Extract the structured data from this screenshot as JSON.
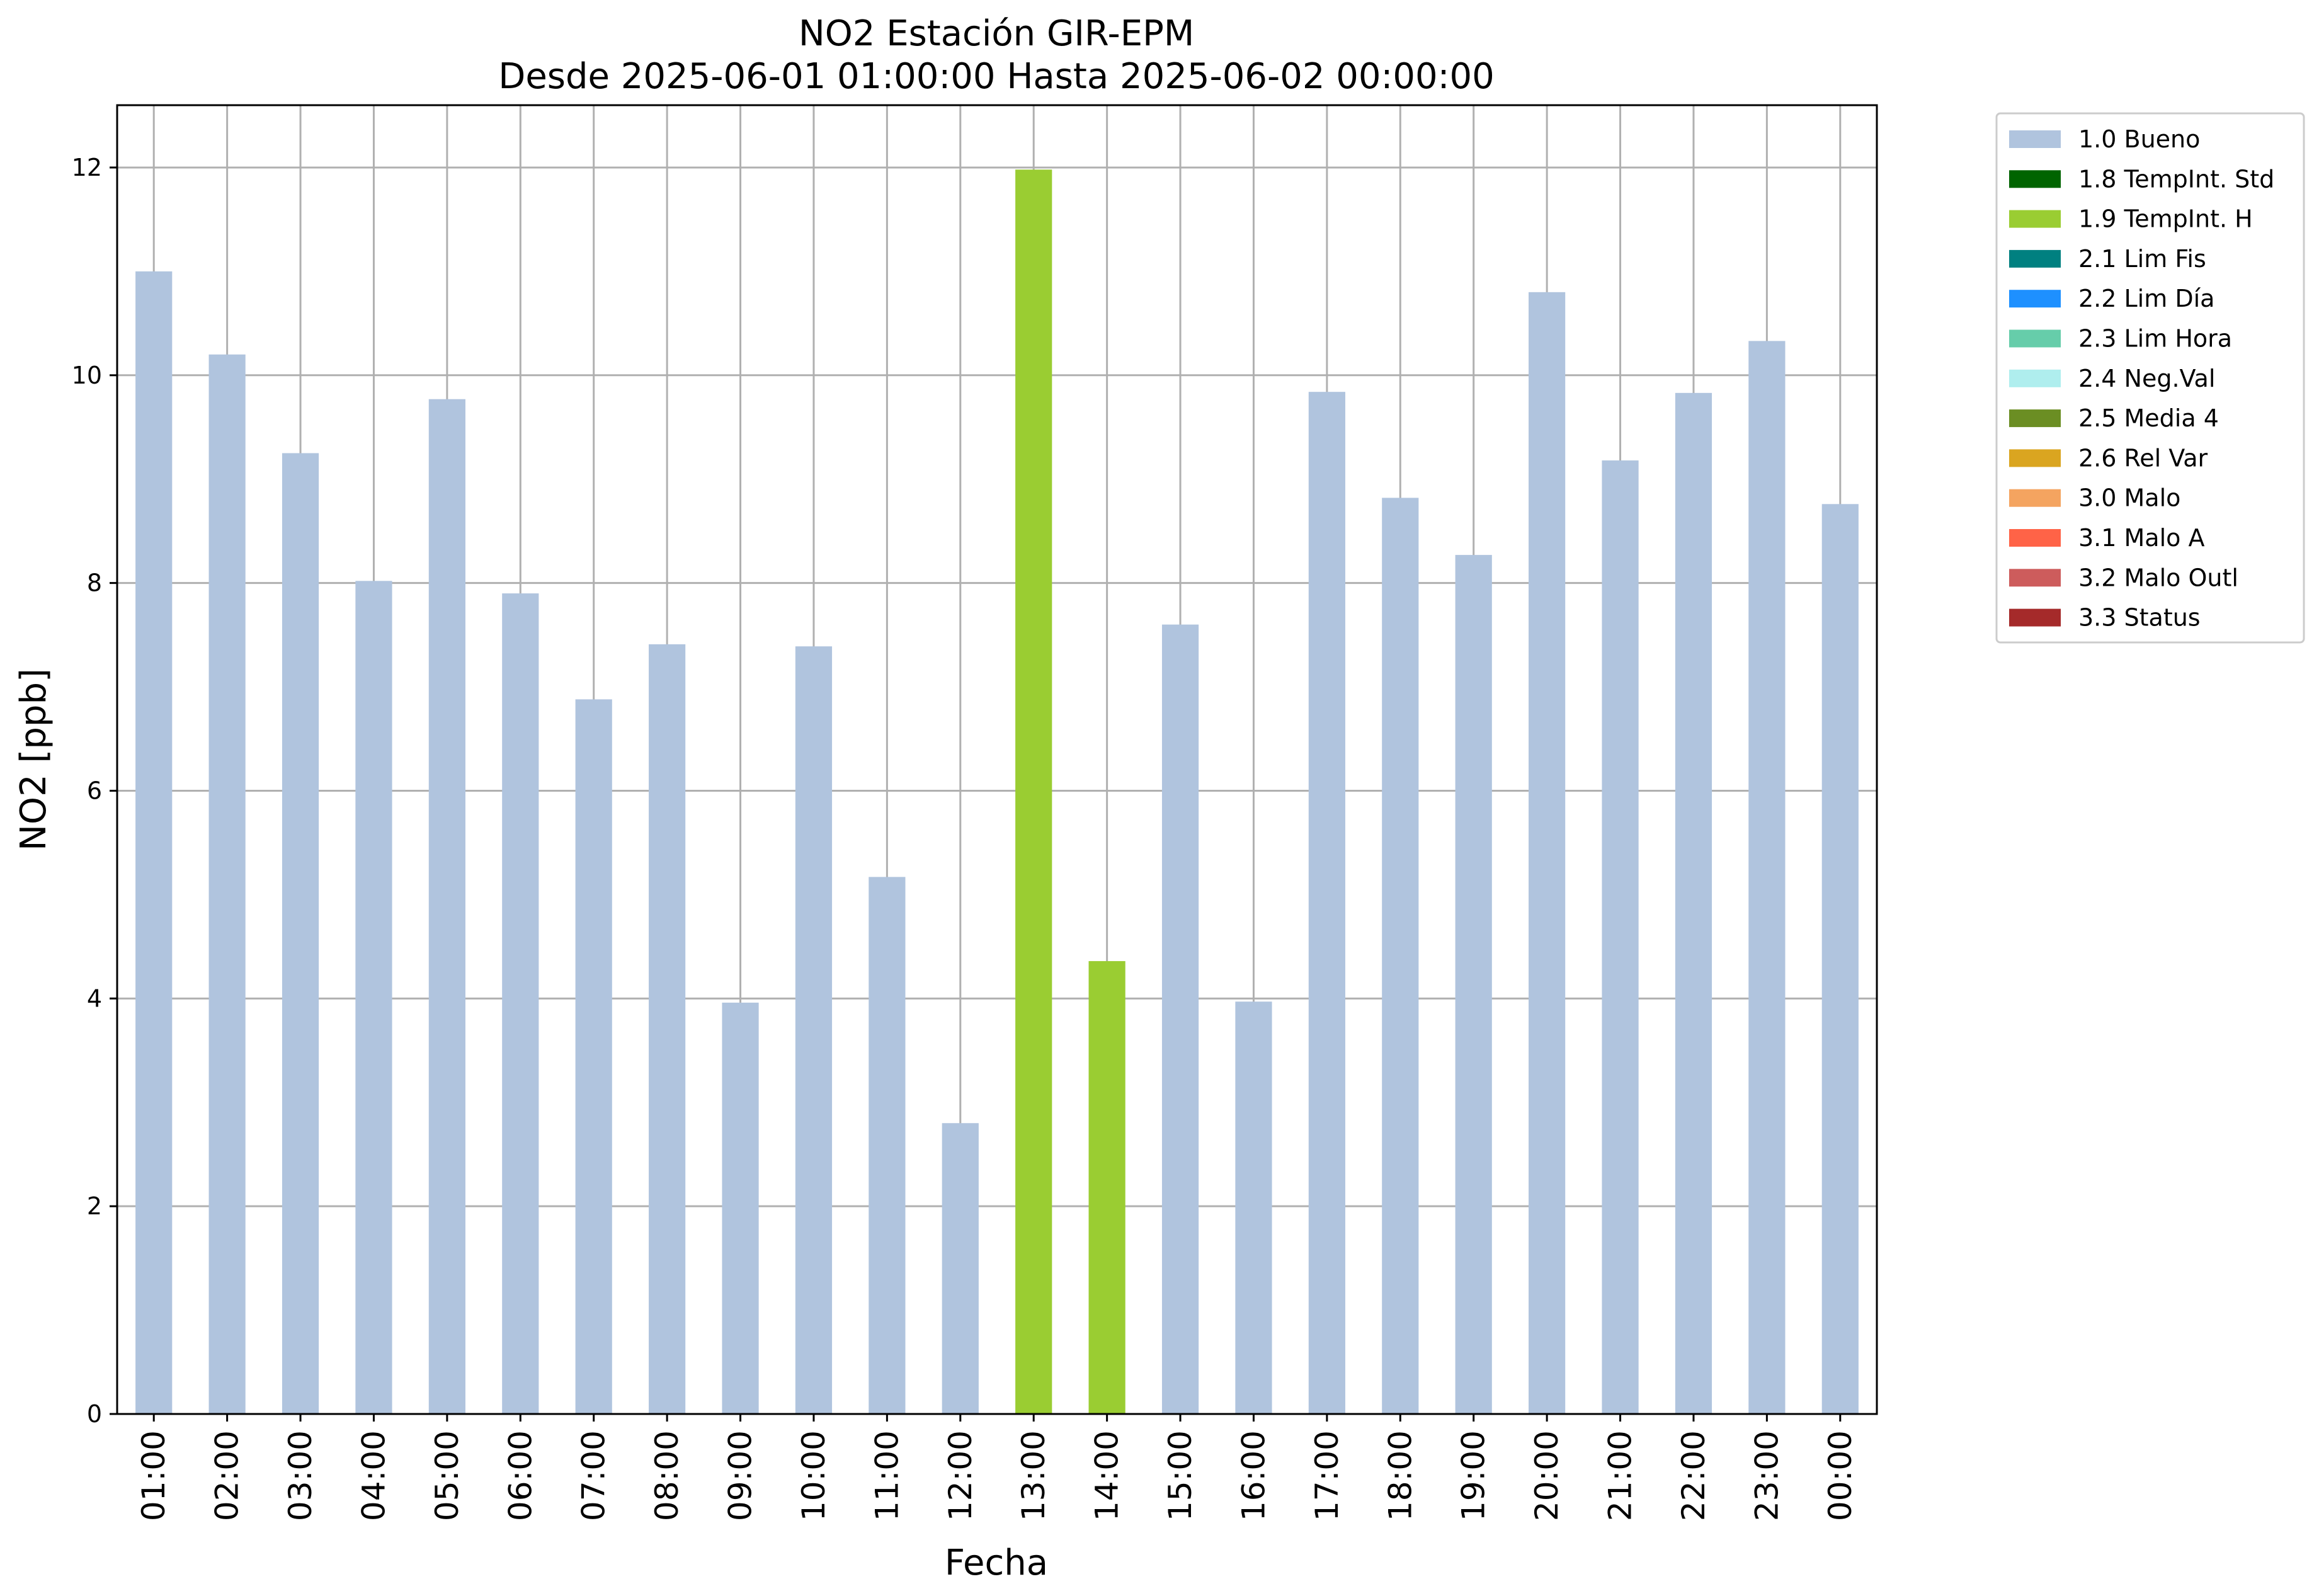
{
  "chart_data": {
    "type": "bar",
    "title": "NO2 Estación GIR-EPM",
    "subtitle": "Desde 2025-06-01 01:00:00 Hasta 2025-06-02 00:00:00",
    "xlabel": "Fecha",
    "ylabel": "NO2 [ppb]",
    "ylim": [
      0,
      12.6
    ],
    "yticks": [
      0,
      2,
      4,
      6,
      8,
      10,
      12
    ],
    "grid": true,
    "legend_position": "outside-top-right",
    "categories": [
      "01:00",
      "02:00",
      "03:00",
      "04:00",
      "05:00",
      "06:00",
      "07:00",
      "08:00",
      "09:00",
      "10:00",
      "11:00",
      "12:00",
      "13:00",
      "14:00",
      "15:00",
      "16:00",
      "17:00",
      "18:00",
      "19:00",
      "20:00",
      "21:00",
      "22:00",
      "23:00",
      "00:00"
    ],
    "values": [
      11.0,
      10.2,
      9.25,
      8.02,
      9.77,
      7.9,
      6.88,
      7.41,
      3.96,
      7.39,
      5.17,
      2.8,
      11.98,
      4.36,
      7.6,
      3.97,
      9.84,
      8.82,
      8.27,
      10.8,
      9.18,
      9.83,
      10.33,
      8.76
    ],
    "flags": [
      "1.0 Bueno",
      "1.0 Bueno",
      "1.0 Bueno",
      "1.0 Bueno",
      "1.0 Bueno",
      "1.0 Bueno",
      "1.0 Bueno",
      "1.0 Bueno",
      "1.0 Bueno",
      "1.0 Bueno",
      "1.0 Bueno",
      "1.0 Bueno",
      "1.9 TempInt. H",
      "1.9 TempInt. H",
      "1.0 Bueno",
      "1.0 Bueno",
      "1.0 Bueno",
      "1.0 Bueno",
      "1.0 Bueno",
      "1.0 Bueno",
      "1.0 Bueno",
      "1.0 Bueno",
      "1.0 Bueno",
      "1.0 Bueno"
    ],
    "legend": [
      {
        "name": "1.0 Bueno",
        "color": "#b0c4de"
      },
      {
        "name": "1.8 TempInt. Std",
        "color": "#006400"
      },
      {
        "name": "1.9 TempInt. H",
        "color": "#9acd32"
      },
      {
        "name": "2.1 Lim Fis",
        "color": "#008080"
      },
      {
        "name": "2.2 Lim Día",
        "color": "#1e90ff"
      },
      {
        "name": "2.3 Lim Hora",
        "color": "#66cdaa"
      },
      {
        "name": "2.4 Neg.Val",
        "color": "#afeeee"
      },
      {
        "name": "2.5 Media 4",
        "color": "#6b8e23"
      },
      {
        "name": "2.6 Rel Var",
        "color": "#daa520"
      },
      {
        "name": "3.0 Malo",
        "color": "#f4a460"
      },
      {
        "name": "3.1 Malo A",
        "color": "#ff6347"
      },
      {
        "name": "3.2 Malo Outl",
        "color": "#cd5c5c"
      },
      {
        "name": "3.3 Status",
        "color": "#a52a2a"
      }
    ]
  }
}
